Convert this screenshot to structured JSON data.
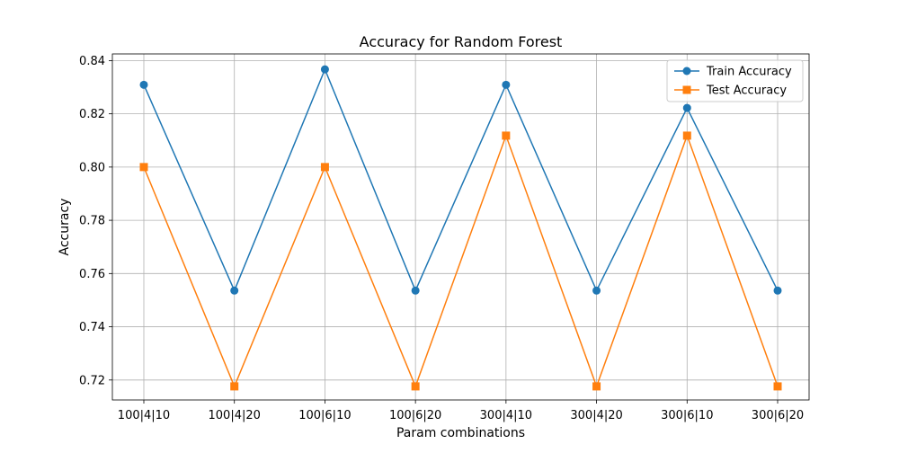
{
  "chart_data": {
    "type": "line",
    "title": "Accuracy for Random Forest",
    "xlabel": "Param combinations",
    "ylabel": "Accuracy",
    "categories": [
      "100|4|10",
      "100|4|20",
      "100|6|10",
      "100|6|20",
      "300|4|10",
      "300|4|20",
      "300|6|10",
      "300|6|20"
    ],
    "ylim": [
      0.7125,
      0.8425
    ],
    "yticks": [
      0.72,
      0.74,
      0.76,
      0.78,
      0.8,
      0.82,
      0.84
    ],
    "ytick_labels": [
      "0.72",
      "0.74",
      "0.76",
      "0.78",
      "0.80",
      "0.82",
      "0.84"
    ],
    "grid": true,
    "legend_position": "top-right",
    "series": [
      {
        "name": "Train Accuracy",
        "color": "#1f77b4",
        "marker": "circle",
        "values": [
          0.8309,
          0.7536,
          0.8367,
          0.7536,
          0.8309,
          0.7536,
          0.8222,
          0.7536
        ]
      },
      {
        "name": "Test Accuracy",
        "color": "#ff7f0e",
        "marker": "square",
        "values": [
          0.8,
          0.7176,
          0.8,
          0.7176,
          0.8118,
          0.7176,
          0.8118,
          0.7176
        ]
      }
    ]
  }
}
